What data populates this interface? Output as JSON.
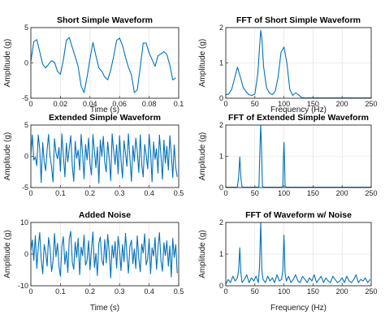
{
  "style": {
    "line_color": "#0072BD",
    "frame_color": "#262626",
    "grid_color": "#dcdcdc"
  },
  "chart_data": [
    {
      "id": "short-wave",
      "type": "line",
      "title": "Short Simple Waveform",
      "xlabel": "Time (s)",
      "ylabel": "Amplitude (g)",
      "xlim": [
        0,
        0.1
      ],
      "ylim": [
        -5,
        5
      ],
      "xticks": [
        0,
        0.02,
        0.04,
        0.06,
        0.08,
        0.1
      ],
      "xtick_labels": [
        "0",
        "0.02",
        "0.04",
        "0.06",
        "0.08",
        "0.1"
      ],
      "yticks": [
        -5,
        0,
        5
      ],
      "ytick_labels": [
        "-5",
        "0",
        "5"
      ],
      "grid": true,
      "series": [
        {
          "x": [
            0,
            0.002,
            0.004,
            0.006,
            0.008,
            0.01,
            0.012,
            0.014,
            0.016,
            0.018,
            0.02,
            0.022,
            0.024,
            0.026,
            0.028,
            0.03,
            0.032,
            0.034,
            0.036,
            0.038,
            0.04,
            0.042,
            0.044,
            0.046,
            0.048,
            0.05,
            0.052,
            0.054,
            0.056,
            0.058,
            0.06,
            0.062,
            0.064,
            0.066,
            0.068,
            0.07,
            0.072,
            0.074,
            0.076,
            0.078,
            0.08,
            0.082,
            0.084,
            0.086,
            0.088,
            0.09,
            0.092,
            0.094,
            0.096,
            0.098
          ],
          "y": [
            0.2,
            3.0,
            3.3,
            1.6,
            -0.2,
            -0.7,
            -0.2,
            0.3,
            0.1,
            -1.2,
            -1.6,
            0.4,
            3.2,
            3.6,
            2.2,
            0.9,
            -0.5,
            -3.3,
            -4.2,
            -2.0,
            0.6,
            2.9,
            1.0,
            -0.7,
            -1.2,
            -2.0,
            -2.4,
            -1.0,
            0.9,
            3.2,
            3.5,
            2.5,
            0.8,
            -0.6,
            -1.7,
            -4.2,
            -3.8,
            -0.6,
            2.8,
            2.8,
            1.4,
            0.5,
            -0.5,
            1.0,
            1.3,
            1.6,
            1.2,
            -0.3,
            -2.4,
            -2.1
          ]
        }
      ]
    },
    {
      "id": "fft-short",
      "type": "line",
      "title": "FFT of Short Simple Waveform",
      "xlabel": "Frequency (Hz)",
      "ylabel": "Amplitude (g)",
      "xlim": [
        0,
        250
      ],
      "ylim": [
        0,
        2
      ],
      "xticks": [
        0,
        50,
        100,
        150,
        200,
        250
      ],
      "xtick_labels": [
        "0",
        "50",
        "100",
        "150",
        "200",
        "250"
      ],
      "yticks": [
        0,
        1,
        2
      ],
      "ytick_labels": [
        "0",
        "1",
        "2"
      ],
      "grid": true,
      "series": [
        {
          "x": [
            0,
            5,
            10,
            15,
            20,
            25,
            30,
            35,
            40,
            45,
            50,
            55,
            60,
            62,
            65,
            70,
            75,
            80,
            85,
            90,
            95,
            100,
            105,
            110,
            115,
            120,
            125,
            130,
            135,
            140,
            150,
            200,
            250
          ],
          "y": [
            0.1,
            0.12,
            0.25,
            0.55,
            0.88,
            0.6,
            0.3,
            0.18,
            0.1,
            0.08,
            0.12,
            0.7,
            1.92,
            1.7,
            0.9,
            0.3,
            0.15,
            0.1,
            0.2,
            0.6,
            1.3,
            1.45,
            1.0,
            0.25,
            0.08,
            0.15,
            0.1,
            0.02,
            0.01,
            0.01,
            0.01,
            0.01,
            0.01
          ]
        }
      ]
    },
    {
      "id": "extended-wave",
      "type": "line",
      "title": "Extended Simple Waveform",
      "xlabel": "",
      "ylabel": "Amplitude (g)",
      "xlim": [
        0,
        0.5
      ],
      "ylim": [
        -5,
        5
      ],
      "xticks": [
        0,
        0.1,
        0.2,
        0.3,
        0.4,
        0.5
      ],
      "xtick_labels": [
        "0",
        "0.1",
        "0.2",
        "0.3",
        "0.4",
        "0.5"
      ],
      "yticks": [
        -5,
        0,
        5
      ],
      "ytick_labels": [
        "-5",
        "0",
        "5"
      ],
      "grid": true,
      "series": [
        {
          "x": [
            0,
            0.005,
            0.01,
            0.015,
            0.02,
            0.025,
            0.03,
            0.035,
            0.04,
            0.045,
            0.05,
            0.055,
            0.06,
            0.065,
            0.07,
            0.075,
            0.08,
            0.085,
            0.09,
            0.095,
            0.1,
            0.105,
            0.11,
            0.115,
            0.12,
            0.125,
            0.13,
            0.135,
            0.14,
            0.145,
            0.15,
            0.155,
            0.16,
            0.165,
            0.17,
            0.175,
            0.18,
            0.185,
            0.19,
            0.195,
            0.2,
            0.205,
            0.21,
            0.215,
            0.22,
            0.225,
            0.23,
            0.235,
            0.24,
            0.245,
            0.25,
            0.255,
            0.26,
            0.265,
            0.27,
            0.275,
            0.28,
            0.285,
            0.29,
            0.295,
            0.3,
            0.305,
            0.31,
            0.315,
            0.32,
            0.325,
            0.33,
            0.335,
            0.34,
            0.345,
            0.35,
            0.355,
            0.36,
            0.365,
            0.37,
            0.375,
            0.38,
            0.385,
            0.39,
            0.395,
            0.4,
            0.405,
            0.41,
            0.415,
            0.42,
            0.425,
            0.43,
            0.435,
            0.44,
            0.445,
            0.45,
            0.455,
            0.46,
            0.465,
            0.47,
            0.475,
            0.48,
            0.485,
            0.49,
            0.495
          ],
          "y": [
            0.2,
            3.4,
            -0.6,
            -0.1,
            -1.5,
            3.4,
            1.2,
            -4.2,
            2.2,
            -0.8,
            -2.3,
            1.0,
            3.5,
            -0.1,
            -1.7,
            -4.1,
            2.8,
            0.6,
            -0.4,
            1.4,
            -2.4,
            3.6,
            0.1,
            -3.3,
            2.1,
            -0.9,
            1.3,
            3.3,
            -1.5,
            -4.0,
            2.4,
            -0.3,
            1.0,
            -2.2,
            3.5,
            0.4,
            -3.6,
            1.9,
            -0.6,
            2.9,
            -1.2,
            -3.0,
            3.5,
            0.7,
            -1.8,
            1.5,
            -4.3,
            2.6,
            0.0,
            3.2,
            -1.0,
            -2.5,
            2.3,
            -0.4,
            -3.9,
            3.6,
            0.9,
            -1.3,
            1.8,
            -2.8,
            3.3,
            -0.6,
            -3.5,
            2.5,
            0.5,
            -1.6,
            3.6,
            -0.2,
            -4.0,
            1.7,
            -0.8,
            2.9,
            0.8,
            -2.6,
            3.4,
            -1.3,
            -3.3,
            1.9,
            0.2,
            -2.0,
            3.5,
            0.7,
            -4.1,
            2.3,
            -0.5,
            1.2,
            -2.7,
            3.4,
            0.0,
            -3.7,
            2.6,
            -1.1,
            1.6,
            -2.2,
            3.3,
            0.4,
            -3.4,
            1.8,
            -1.8,
            -3.3
          ]
        }
      ]
    },
    {
      "id": "fft-extended",
      "type": "line",
      "title": "FFT of Extended Simple Waveform",
      "xlabel": "",
      "ylabel": "Amplitude (g)",
      "xlim": [
        0,
        250
      ],
      "ylim": [
        0,
        2
      ],
      "xticks": [
        0,
        50,
        100,
        150,
        200,
        250
      ],
      "xtick_labels": [
        "0",
        "50",
        "100",
        "150",
        "200",
        "250"
      ],
      "yticks": [
        0,
        1,
        2
      ],
      "ytick_labels": [
        "0",
        "1",
        "2"
      ],
      "grid": true,
      "series": [
        {
          "x": [
            0,
            18,
            20,
            22,
            24,
            26,
            28,
            30,
            55,
            57,
            59,
            60,
            61,
            63,
            65,
            96,
            98,
            99,
            100,
            101,
            102,
            104,
            150,
            200,
            250
          ],
          "y": [
            0.01,
            0.01,
            0.02,
            0.35,
            0.98,
            0.3,
            0.02,
            0.01,
            0.01,
            0.05,
            1.4,
            2.0,
            1.5,
            0.05,
            0.01,
            0.01,
            0.05,
            0.9,
            1.45,
            0.9,
            0.05,
            0.01,
            0.01,
            0.01,
            0.01
          ]
        }
      ]
    },
    {
      "id": "added-noise",
      "type": "line",
      "title": "Added Noise",
      "xlabel": "Time (s)",
      "ylabel": "Amplitude (g)",
      "xlim": [
        0,
        0.5
      ],
      "ylim": [
        -10,
        10
      ],
      "xticks": [
        0,
        0.1,
        0.2,
        0.3,
        0.4,
        0.5
      ],
      "xtick_labels": [
        "0",
        "0.1",
        "0.2",
        "0.3",
        "0.4",
        "0.5"
      ],
      "yticks": [
        -10,
        0,
        10
      ],
      "ytick_labels": [
        "-10",
        "0",
        "10"
      ],
      "grid": true,
      "series": [
        {
          "x": [
            0,
            0.005,
            0.01,
            0.015,
            0.02,
            0.025,
            0.03,
            0.035,
            0.04,
            0.045,
            0.05,
            0.055,
            0.06,
            0.065,
            0.07,
            0.075,
            0.08,
            0.085,
            0.09,
            0.095,
            0.1,
            0.105,
            0.11,
            0.115,
            0.12,
            0.125,
            0.13,
            0.135,
            0.14,
            0.145,
            0.15,
            0.155,
            0.16,
            0.165,
            0.17,
            0.175,
            0.18,
            0.185,
            0.19,
            0.195,
            0.2,
            0.205,
            0.21,
            0.215,
            0.22,
            0.225,
            0.23,
            0.235,
            0.24,
            0.245,
            0.25,
            0.255,
            0.26,
            0.265,
            0.27,
            0.275,
            0.28,
            0.285,
            0.29,
            0.295,
            0.3,
            0.305,
            0.31,
            0.315,
            0.32,
            0.325,
            0.33,
            0.335,
            0.34,
            0.345,
            0.35,
            0.355,
            0.36,
            0.365,
            0.37,
            0.375,
            0.38,
            0.385,
            0.39,
            0.395,
            0.4,
            0.405,
            0.41,
            0.415,
            0.42,
            0.425,
            0.43,
            0.435,
            0.44,
            0.445,
            0.45,
            0.455,
            0.46,
            0.465,
            0.47,
            0.475,
            0.48,
            0.485,
            0.49,
            0.495
          ],
          "y": [
            1.0,
            4.5,
            -2.0,
            5.8,
            -4.5,
            2.1,
            6.8,
            -1.5,
            -6.2,
            3.0,
            0.5,
            -3.8,
            5.2,
            1.8,
            -5.5,
            -2.2,
            6.5,
            -0.8,
            3.4,
            -4.0,
            -7.0,
            2.6,
            5.5,
            -3.2,
            0.9,
            -5.8,
            4.8,
            7.2,
            -2.5,
            -4.8,
            3.8,
            -1.0,
            5.0,
            -6.5,
            2.2,
            -0.5,
            6.0,
            -3.5,
            -2.0,
            4.2,
            -5.0,
            1.4,
            7.0,
            -4.2,
            0.2,
            -6.8,
            3.5,
            5.4,
            -1.8,
            -3.6,
            4.6,
            -2.8,
            6.2,
            0.6,
            -7.5,
            2.8,
            -1.2,
            4.0,
            -4.4,
            5.6,
            1.2,
            -5.2,
            3.0,
            -2.4,
            6.6,
            -0.2,
            -6.0,
            2.4,
            4.4,
            -3.0,
            1.6,
            -4.6,
            5.8,
            -1.4,
            -5.6,
            3.2,
            0.4,
            6.4,
            -3.4,
            -1.6,
            4.8,
            -6.2,
            2.0,
            -0.6,
            5.2,
            -4.8,
            1.8,
            6.8,
            -2.2,
            -5.4,
            3.6,
            -0.4,
            4.2,
            -3.8,
            2.6,
            -7.2,
            5.0,
            -1.0,
            3.0,
            -6.0
          ]
        }
      ]
    },
    {
      "id": "fft-noise",
      "type": "line",
      "title": "FFT of Waveform w/ Noise",
      "xlabel": "Frequency (Hz)",
      "ylabel": "Amplitude (g)",
      "xlim": [
        0,
        250
      ],
      "ylim": [
        0,
        2
      ],
      "xticks": [
        0,
        50,
        100,
        150,
        200,
        250
      ],
      "xtick_labels": [
        "0",
        "50",
        "100",
        "150",
        "200",
        "250"
      ],
      "yticks": [
        0,
        1,
        2
      ],
      "ytick_labels": [
        "0",
        "1",
        "2"
      ],
      "grid": true,
      "series": [
        {
          "x": [
            0,
            4,
            8,
            12,
            16,
            20,
            22,
            24,
            26,
            28,
            32,
            36,
            40,
            44,
            48,
            52,
            56,
            58,
            60,
            62,
            64,
            68,
            72,
            76,
            80,
            84,
            88,
            92,
            96,
            98,
            100,
            102,
            104,
            108,
            112,
            116,
            120,
            124,
            128,
            132,
            136,
            140,
            144,
            148,
            152,
            156,
            160,
            164,
            168,
            172,
            176,
            180,
            184,
            188,
            192,
            196,
            200,
            204,
            208,
            212,
            216,
            220,
            224,
            228,
            232,
            236,
            240,
            244,
            248
          ],
          "y": [
            0.05,
            0.2,
            0.1,
            0.3,
            0.15,
            0.25,
            0.5,
            1.2,
            0.4,
            0.1,
            0.2,
            0.35,
            0.1,
            0.25,
            0.15,
            0.3,
            0.1,
            0.6,
            2.0,
            0.5,
            0.2,
            0.1,
            0.3,
            0.15,
            0.25,
            0.1,
            0.35,
            0.15,
            0.2,
            0.5,
            1.6,
            0.4,
            0.15,
            0.3,
            0.1,
            0.2,
            0.35,
            0.15,
            0.1,
            0.3,
            0.2,
            0.1,
            0.25,
            0.15,
            0.35,
            0.1,
            0.2,
            0.3,
            0.1,
            0.25,
            0.15,
            0.1,
            0.3,
            0.2,
            0.1,
            0.15,
            0.25,
            0.1,
            0.3,
            0.15,
            0.1,
            0.2,
            0.35,
            0.1,
            0.2,
            0.15,
            0.25,
            0.1,
            0.2
          ]
        }
      ]
    }
  ]
}
